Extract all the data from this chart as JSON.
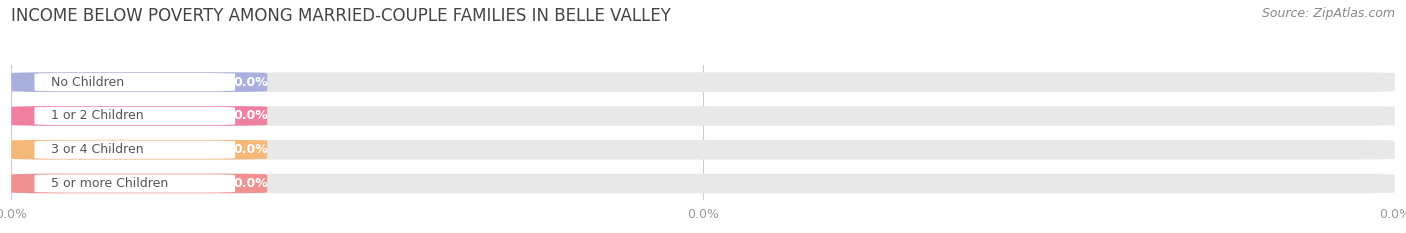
{
  "title": "INCOME BELOW POVERTY AMONG MARRIED-COUPLE FAMILIES IN BELLE VALLEY",
  "source": "Source: ZipAtlas.com",
  "categories": [
    "No Children",
    "1 or 2 Children",
    "3 or 4 Children",
    "5 or more Children"
  ],
  "values": [
    0.0,
    0.0,
    0.0,
    0.0
  ],
  "bar_colors": [
    "#aab0dd",
    "#f080a0",
    "#f5b878",
    "#f09090"
  ],
  "title_fontsize": 12,
  "source_fontsize": 9,
  "label_fontsize": 9,
  "value_fontsize": 9,
  "tick_fontsize": 9,
  "fig_width": 14.06,
  "fig_height": 2.33,
  "background_color": "#ffffff",
  "bar_bg_color": "#e8e8e8",
  "white_pill_color": "#ffffff",
  "label_text_color": "#555555",
  "value_text_color": "#ffffff",
  "grid_color": "#cccccc",
  "tick_color": "#999999",
  "title_color": "#444444",
  "source_color": "#888888"
}
